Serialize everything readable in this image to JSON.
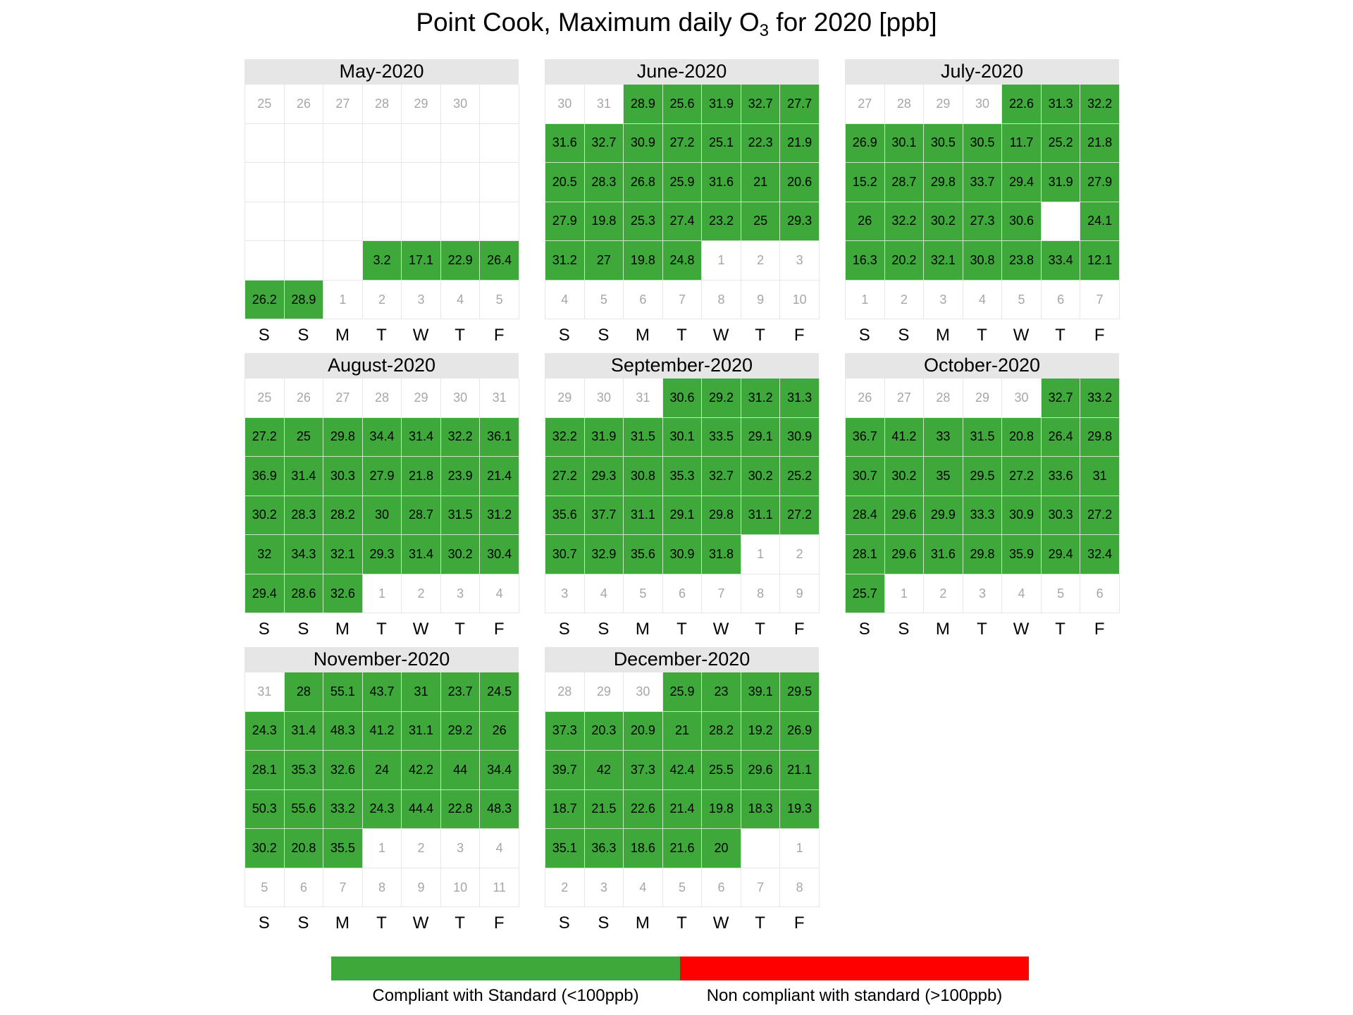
{
  "chart_data": {
    "type": "heatmap",
    "title": "Point Cook, Maximum daily O",
    "title_sub": "3",
    "title_suffix": " for 2020 [ppb]",
    "weekday_labels": [
      "S",
      "S",
      "M",
      "T",
      "W",
      "T",
      "F"
    ],
    "colors": {
      "compliant": "#3ea83a",
      "non_compliant": "#ff0000",
      "strip": "#e6e6e6"
    },
    "legend": [
      {
        "label": "Compliant with Standard (<100ppb)",
        "color": "#3ea83a"
      },
      {
        "label": "Non compliant with standard (>100ppb)",
        "color": "#ff0000"
      }
    ],
    "months": [
      {
        "name": "May-2020",
        "cells": [
          "25",
          "26",
          "27",
          "28",
          "29",
          "30",
          "",
          "",
          "",
          "",
          "",
          "",
          "",
          "",
          "",
          "",
          "",
          "",
          "",
          "",
          "",
          "",
          "",
          "",
          "",
          "",
          "",
          "",
          "",
          "",
          "",
          "3.2",
          "17.1",
          "22.9",
          "26.4",
          "26.2",
          "28.9",
          "1",
          "2",
          "3",
          "4",
          "5"
        ],
        "outside": [
          0,
          1,
          2,
          3,
          4,
          5,
          37,
          38,
          39,
          40,
          41
        ]
      },
      {
        "name": "June-2020",
        "cells": [
          "30",
          "31",
          "28.9",
          "25.6",
          "31.9",
          "32.7",
          "27.7",
          "31.6",
          "32.7",
          "30.9",
          "27.2",
          "25.1",
          "22.3",
          "21.9",
          "20.5",
          "28.3",
          "26.8",
          "25.9",
          "31.6",
          "21",
          "20.6",
          "27.9",
          "19.8",
          "25.3",
          "27.4",
          "23.2",
          "25",
          "29.3",
          "31.2",
          "27",
          "19.8",
          "24.8",
          "1",
          "2",
          "3",
          "4",
          "5",
          "6",
          "7",
          "8",
          "9",
          "10"
        ],
        "outside": [
          0,
          1,
          32,
          33,
          34,
          35,
          36,
          37,
          38,
          39,
          40,
          41
        ]
      },
      {
        "name": "July-2020",
        "cells": [
          "27",
          "28",
          "29",
          "30",
          "22.6",
          "31.3",
          "32.2",
          "26.9",
          "30.1",
          "30.5",
          "30.5",
          "11.7",
          "25.2",
          "21.8",
          "15.2",
          "28.7",
          "29.8",
          "33.7",
          "29.4",
          "31.9",
          "27.9",
          "26",
          "32.2",
          "30.2",
          "27.3",
          "30.6",
          "",
          "24.1",
          "16.3",
          "20.2",
          "32.1",
          "30.8",
          "23.8",
          "33.4",
          "12.1",
          "1",
          "2",
          "3",
          "4",
          "5",
          "6",
          "7"
        ],
        "outside": [
          0,
          1,
          2,
          3,
          35,
          36,
          37,
          38,
          39,
          40,
          41
        ]
      },
      {
        "name": "August-2020",
        "cells": [
          "25",
          "26",
          "27",
          "28",
          "29",
          "30",
          "31",
          "27.2",
          "25",
          "29.8",
          "34.4",
          "31.4",
          "32.2",
          "36.1",
          "36.9",
          "31.4",
          "30.3",
          "27.9",
          "21.8",
          "23.9",
          "21.4",
          "30.2",
          "28.3",
          "28.2",
          "30",
          "28.7",
          "31.5",
          "31.2",
          "32",
          "34.3",
          "32.1",
          "29.3",
          "31.4",
          "30.2",
          "30.4",
          "29.4",
          "28.6",
          "32.6",
          "1",
          "2",
          "3",
          "4"
        ],
        "outside": [
          0,
          1,
          2,
          3,
          4,
          5,
          6,
          38,
          39,
          40,
          41
        ]
      },
      {
        "name": "September-2020",
        "cells": [
          "29",
          "30",
          "31",
          "30.6",
          "29.2",
          "31.2",
          "31.3",
          "32.2",
          "31.9",
          "31.5",
          "30.1",
          "33.5",
          "29.1",
          "30.9",
          "27.2",
          "29.3",
          "30.8",
          "35.3",
          "32.7",
          "30.2",
          "25.2",
          "35.6",
          "37.7",
          "31.1",
          "29.1",
          "29.8",
          "31.1",
          "27.2",
          "30.7",
          "32.9",
          "35.6",
          "30.9",
          "31.8",
          "1",
          "2",
          "3",
          "4",
          "5",
          "6",
          "7",
          "8",
          "9"
        ],
        "outside": [
          0,
          1,
          2,
          33,
          34,
          35,
          36,
          37,
          38,
          39,
          40,
          41
        ]
      },
      {
        "name": "October-2020",
        "cells": [
          "26",
          "27",
          "28",
          "29",
          "30",
          "32.7",
          "33.2",
          "36.7",
          "41.2",
          "33",
          "31.5",
          "20.8",
          "26.4",
          "29.8",
          "30.7",
          "30.2",
          "35",
          "29.5",
          "27.2",
          "33.6",
          "31",
          "28.4",
          "29.6",
          "29.9",
          "33.3",
          "30.9",
          "30.3",
          "27.2",
          "28.1",
          "29.6",
          "31.6",
          "29.8",
          "35.9",
          "29.4",
          "32.4",
          "25.7",
          "1",
          "2",
          "3",
          "4",
          "5",
          "6"
        ],
        "outside": [
          0,
          1,
          2,
          3,
          4,
          36,
          37,
          38,
          39,
          40,
          41
        ]
      },
      {
        "name": "November-2020",
        "cells": [
          "31",
          "28",
          "55.1",
          "43.7",
          "31",
          "23.7",
          "24.5",
          "24.3",
          "31.4",
          "48.3",
          "41.2",
          "31.1",
          "29.2",
          "26",
          "28.1",
          "35.3",
          "32.6",
          "24",
          "42.2",
          "44",
          "34.4",
          "50.3",
          "55.6",
          "33.2",
          "24.3",
          "44.4",
          "22.8",
          "48.3",
          "30.2",
          "20.8",
          "35.5",
          "1",
          "2",
          "3",
          "4",
          "5",
          "6",
          "7",
          "8",
          "9",
          "10",
          "11"
        ],
        "outside": [
          0,
          31,
          32,
          33,
          34,
          35,
          36,
          37,
          38,
          39,
          40,
          41
        ]
      },
      {
        "name": "December-2020",
        "cells": [
          "28",
          "29",
          "30",
          "25.9",
          "23",
          "39.1",
          "29.5",
          "37.3",
          "20.3",
          "20.9",
          "21",
          "28.2",
          "19.2",
          "26.9",
          "39.7",
          "42",
          "37.3",
          "42.4",
          "25.5",
          "29.6",
          "21.1",
          "18.7",
          "21.5",
          "22.6",
          "21.4",
          "19.8",
          "18.3",
          "19.3",
          "35.1",
          "36.3",
          "18.6",
          "21.6",
          "20",
          "",
          "1",
          "2",
          "3",
          "4",
          "5",
          "6",
          "7",
          "8"
        ],
        "outside": [
          0,
          1,
          2,
          34,
          35,
          36,
          37,
          38,
          39,
          40,
          41
        ]
      }
    ]
  }
}
